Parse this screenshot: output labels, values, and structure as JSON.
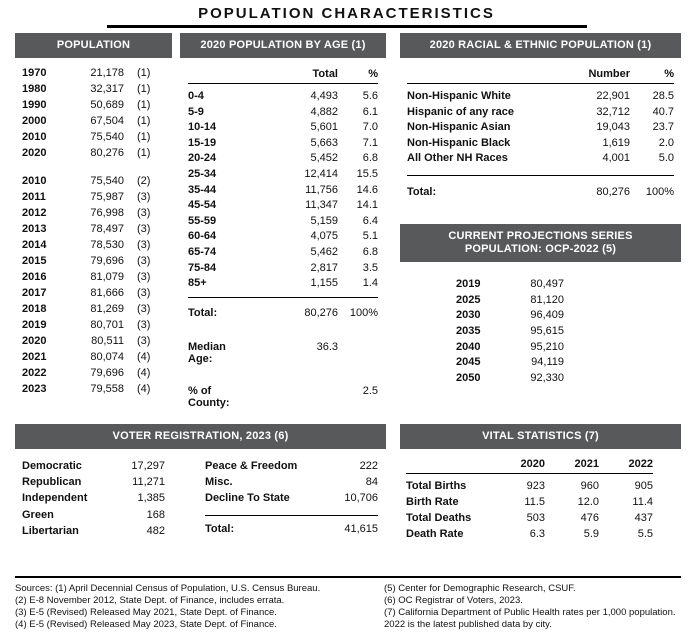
{
  "colors": {
    "header_bar": "#58595B"
  },
  "page": {
    "title": "POPULATION CHARACTERISTICS"
  },
  "population": {
    "header": "POPULATION",
    "rows1": [
      {
        "year": "1970",
        "value": "21,178",
        "note": "(1)"
      },
      {
        "year": "1980",
        "value": "32,317",
        "note": "(1)"
      },
      {
        "year": "1990",
        "value": "50,689",
        "note": "(1)"
      },
      {
        "year": "2000",
        "value": "67,504",
        "note": "(1)"
      },
      {
        "year": "2010",
        "value": "75,540",
        "note": "(1)"
      },
      {
        "year": "2020",
        "value": "80,276",
        "note": "(1)"
      }
    ],
    "rows2": [
      {
        "year": "2010",
        "value": "75,540",
        "note": "(2)"
      },
      {
        "year": "2011",
        "value": "75,987",
        "note": "(3)"
      },
      {
        "year": "2012",
        "value": "76,998",
        "note": "(3)"
      },
      {
        "year": "2013",
        "value": "78,497",
        "note": "(3)"
      },
      {
        "year": "2014",
        "value": "78,530",
        "note": "(3)"
      },
      {
        "year": "2015",
        "value": "79,696",
        "note": "(3)"
      },
      {
        "year": "2016",
        "value": "81,079",
        "note": "(3)"
      },
      {
        "year": "2017",
        "value": "81,666",
        "note": "(3)"
      },
      {
        "year": "2018",
        "value": "81,269",
        "note": "(3)"
      },
      {
        "year": "2019",
        "value": "80,701",
        "note": "(3)"
      },
      {
        "year": "2020",
        "value": "80,511",
        "note": "(3)"
      },
      {
        "year": "2021",
        "value": "80,074",
        "note": "(4)"
      },
      {
        "year": "2022",
        "value": "79,696",
        "note": "(4)"
      },
      {
        "year": "2023",
        "value": "79,558",
        "note": "(4)"
      }
    ]
  },
  "age": {
    "header": "2020 POPULATION BY AGE (1)",
    "col_total": "Total",
    "col_pct": "%",
    "rows": [
      {
        "group": "0-4",
        "total": "4,493",
        "pct": "5.6"
      },
      {
        "group": "5-9",
        "total": "4,882",
        "pct": "6.1"
      },
      {
        "group": "10-14",
        "total": "5,601",
        "pct": "7.0"
      },
      {
        "group": "15-19",
        "total": "5,663",
        "pct": "7.1"
      },
      {
        "group": "20-24",
        "total": "5,452",
        "pct": "6.8"
      },
      {
        "group": "25-34",
        "total": "12,414",
        "pct": "15.5"
      },
      {
        "group": "35-44",
        "total": "11,756",
        "pct": "14.6"
      },
      {
        "group": "45-54",
        "total": "11,347",
        "pct": "14.1"
      },
      {
        "group": "55-59",
        "total": "5,159",
        "pct": "6.4"
      },
      {
        "group": "60-64",
        "total": "4,075",
        "pct": "5.1"
      },
      {
        "group": "65-74",
        "total": "5,462",
        "pct": "6.8"
      },
      {
        "group": "75-84",
        "total": "2,817",
        "pct": "3.5"
      },
      {
        "group": "85+",
        "total": "1,155",
        "pct": "1.4"
      }
    ],
    "total_label": "Total:",
    "total_value": "80,276",
    "total_pct": "100%",
    "median_label": "Median Age:",
    "median_value": "36.3",
    "county_label": "% of County:",
    "county_value": "2.5"
  },
  "racial": {
    "header": "2020 RACIAL & ETHNIC POPULATION (1)",
    "col_number": "Number",
    "col_pct": "%",
    "rows": [
      {
        "label": "Non-Hispanic White",
        "number": "22,901",
        "pct": "28.5"
      },
      {
        "label": "Hispanic of any race",
        "number": "32,712",
        "pct": "40.7"
      },
      {
        "label": "Non-Hispanic Asian",
        "number": "19,043",
        "pct": "23.7"
      },
      {
        "label": "Non-Hispanic Black",
        "number": "1,619",
        "pct": "2.0"
      },
      {
        "label": "All Other NH Races",
        "number": "4,001",
        "pct": "5.0"
      }
    ],
    "total_label": "Total:",
    "total_value": "80,276",
    "total_pct": "100%"
  },
  "projections": {
    "header_line1": "CURRENT PROJECTIONS SERIES",
    "header_line2": "POPULATION: OCP-2022 (5)",
    "rows": [
      {
        "year": "2019",
        "value": "80,497"
      },
      {
        "year": "2025",
        "value": "81,120"
      },
      {
        "year": "2030",
        "value": "96,409"
      },
      {
        "year": "2035",
        "value": "95,615"
      },
      {
        "year": "2040",
        "value": "95,210"
      },
      {
        "year": "2045",
        "value": "94,119"
      },
      {
        "year": "2050",
        "value": "92,330"
      }
    ]
  },
  "voter": {
    "header": "VOTER REGISTRATION, 2023 (6)",
    "left_rows": [
      {
        "label": "Democratic",
        "value": "17,297"
      },
      {
        "label": "Republican",
        "value": "11,271"
      },
      {
        "label": "Independent",
        "value": "1,385"
      },
      {
        "label": "Green",
        "value": "168"
      },
      {
        "label": "Libertarian",
        "value": "482"
      }
    ],
    "right_rows": [
      {
        "label": "Peace & Freedom",
        "value": "222"
      },
      {
        "label": "Misc.",
        "value": "84"
      },
      {
        "label": "Decline To State",
        "value": "10,706"
      }
    ],
    "total_label": "Total:",
    "total_value": "41,615"
  },
  "vital": {
    "header": "VITAL STATISTICS (7)",
    "col_years": [
      "2020",
      "2021",
      "2022"
    ],
    "rows": [
      {
        "label": "Total Births",
        "values": [
          "923",
          "960",
          "905"
        ]
      },
      {
        "label": "Birth Rate",
        "values": [
          "11.5",
          "12.0",
          "11.4"
        ]
      },
      {
        "label": "Total Deaths",
        "values": [
          "503",
          "476",
          "437"
        ]
      },
      {
        "label": "Death Rate",
        "values": [
          "6.3",
          "5.9",
          "5.5"
        ]
      }
    ]
  },
  "footer": {
    "left_lines": [
      "Sources:  (1) April Decennial Census of Population, U.S. Census Bureau.",
      "(2) E-8 November 2012, State Dept. of Finance, includes errata.",
      "(3) E-5 (Revised) Released May 2021, State Dept. of Finance.",
      "(4) E-5 (Revised) Released May 2023, State Dept. of Finance."
    ],
    "right_lines": [
      "(5) Center for Demographic Research, CSUF.",
      "(6) OC Registrar of Voters, 2023.",
      "(7) California Department of Public Health rates per 1,000 population. 2022 is the latest published data by city."
    ]
  }
}
